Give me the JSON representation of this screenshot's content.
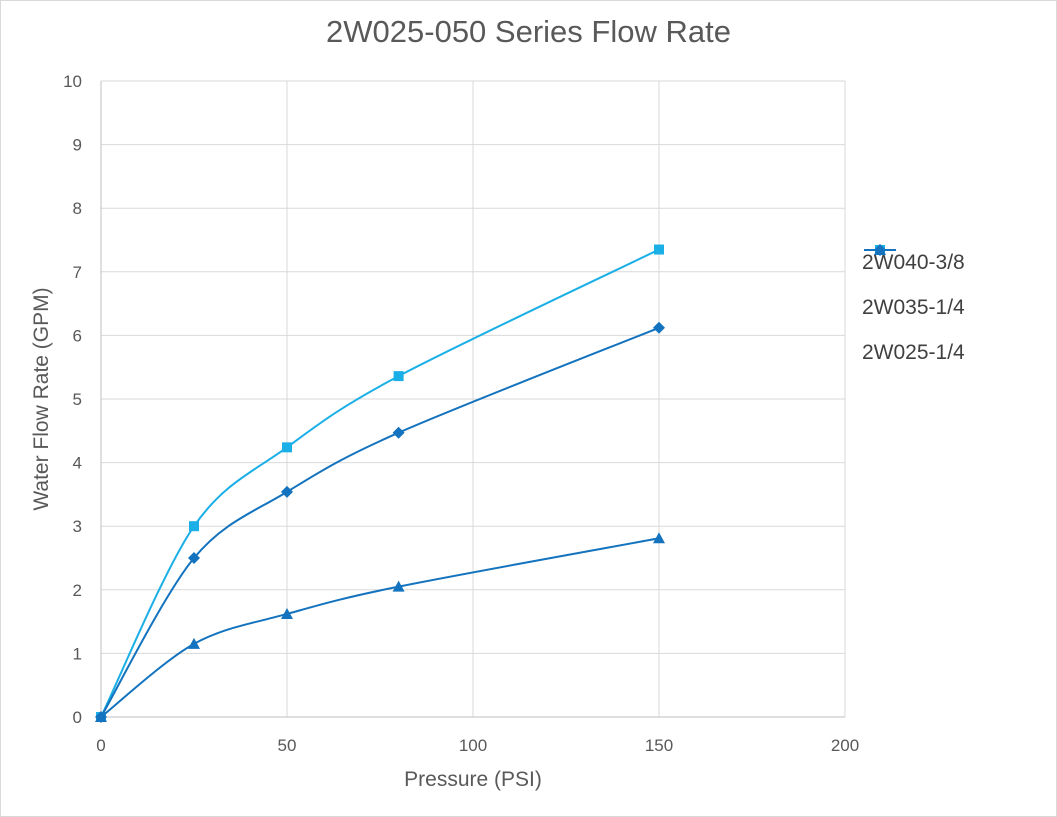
{
  "chart_data": {
    "type": "line",
    "title": "2W025-050 Series Flow Rate",
    "xlabel": "Pressure (PSI)",
    "ylabel": "Water Flow Rate (GPM)",
    "xlim": [
      0,
      200
    ],
    "ylim": [
      0,
      10
    ],
    "x_ticks": [
      0,
      50,
      100,
      150,
      200
    ],
    "y_ticks": [
      0,
      1,
      2,
      3,
      4,
      5,
      6,
      7,
      8,
      9,
      10
    ],
    "grid": true,
    "smooth": true,
    "legend_position": "right",
    "series": [
      {
        "name": "2W040-3/8",
        "marker": "square",
        "color": "#1aafe6",
        "points": [
          [
            0,
            0
          ],
          [
            25,
            3.0
          ],
          [
            50,
            4.24
          ],
          [
            80,
            5.36
          ],
          [
            150,
            7.35
          ]
        ]
      },
      {
        "name": "2W035-1/4",
        "marker": "diamond",
        "color": "#1473be",
        "points": [
          [
            0,
            0
          ],
          [
            25,
            2.5
          ],
          [
            50,
            3.54
          ],
          [
            80,
            4.47
          ],
          [
            150,
            6.12
          ]
        ]
      },
      {
        "name": "2W025-1/4",
        "marker": "triangle",
        "color": "#1473be",
        "points": [
          [
            0,
            0
          ],
          [
            25,
            1.15
          ],
          [
            50,
            1.62
          ],
          [
            80,
            2.05
          ],
          [
            150,
            2.81
          ]
        ]
      }
    ]
  }
}
